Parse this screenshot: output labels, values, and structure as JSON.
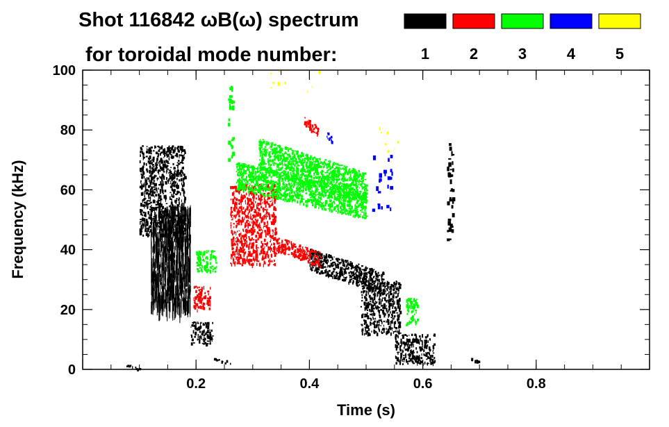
{
  "chart_data": {
    "type": "heatmap",
    "title_line1": "Shot 116842 ωB(ω) spectrum",
    "title_line2": "for toroidal mode number:",
    "xlabel": "Time (s)",
    "ylabel": "Frequency (kHz)",
    "xlim": [
      0.0,
      1.0
    ],
    "ylim": [
      0,
      100
    ],
    "x_ticks": [
      0.2,
      0.4,
      0.6,
      0.8
    ],
    "x_tick_labels": [
      "0.2",
      "0.4",
      "0.6",
      "0.8"
    ],
    "y_ticks": [
      0,
      20,
      40,
      60,
      80,
      100
    ],
    "y_tick_labels": [
      "0",
      "20",
      "40",
      "60",
      "80",
      "100"
    ],
    "legend": [
      {
        "label": "1",
        "color": "#000000"
      },
      {
        "label": "2",
        "color": "#ff0000"
      },
      {
        "label": "3",
        "color": "#00ff00"
      },
      {
        "label": "4",
        "color": "#0000ff"
      },
      {
        "label": "5",
        "color": "#ffff00"
      }
    ],
    "series": [
      {
        "name": "n=1",
        "color": "#000000",
        "regions": [
          {
            "t": [
              0.1,
              0.18
            ],
            "f": [
              45,
              75
            ],
            "kind": "blob"
          },
          {
            "t": [
              0.12,
              0.19
            ],
            "f": [
              22,
              55
            ],
            "kind": "streaks"
          },
          {
            "t": [
              0.19,
              0.23
            ],
            "f": [
              8,
              16
            ],
            "kind": "blob"
          },
          {
            "t": [
              0.23,
              0.26
            ],
            "f": [
              2,
              4
            ],
            "kind": "band"
          },
          {
            "t": [
              0.4,
              0.53
            ],
            "f": [
              25,
              41
            ],
            "kind": "band"
          },
          {
            "t": [
              0.49,
              0.56
            ],
            "f": [
              12,
              30
            ],
            "kind": "blob"
          },
          {
            "t": [
              0.55,
              0.62
            ],
            "f": [
              2,
              12
            ],
            "kind": "blob"
          },
          {
            "t": [
              0.642,
              0.652
            ],
            "f": [
              43,
              76
            ],
            "kind": "streak"
          },
          {
            "t": [
              0.685,
              0.7
            ],
            "f": [
              2,
              4
            ],
            "kind": "band"
          },
          {
            "t": [
              0.075,
              0.1
            ],
            "f": [
              0,
              2
            ],
            "kind": "band"
          }
        ]
      },
      {
        "name": "n=2",
        "color": "#ff0000",
        "regions": [
          {
            "t": [
              0.26,
              0.34
            ],
            "f": [
              35,
              62
            ],
            "kind": "blob"
          },
          {
            "t": [
              0.34,
              0.42
            ],
            "f": [
              34,
              45
            ],
            "kind": "band"
          },
          {
            "t": [
              0.195,
              0.225
            ],
            "f": [
              20,
              28
            ],
            "kind": "blob"
          },
          {
            "t": [
              0.39,
              0.415
            ],
            "f": [
              78,
              85
            ],
            "kind": "band"
          }
        ]
      },
      {
        "name": "n=3",
        "color": "#00ff00",
        "regions": [
          {
            "t": [
              0.27,
              0.5
            ],
            "f": [
              50,
              70
            ],
            "kind": "band"
          },
          {
            "t": [
              0.31,
              0.5
            ],
            "f": [
              55,
              78
            ],
            "kind": "band"
          },
          {
            "t": [
              0.2,
              0.235
            ],
            "f": [
              33,
              40
            ],
            "kind": "blob"
          },
          {
            "t": [
              0.255,
              0.265
            ],
            "f": [
              70,
              95
            ],
            "kind": "streak"
          },
          {
            "t": [
              0.57,
              0.59
            ],
            "f": [
              15,
              24
            ],
            "kind": "blob"
          }
        ]
      },
      {
        "name": "n=4",
        "color": "#0000ff",
        "regions": [
          {
            "t": [
              0.51,
              0.545
            ],
            "f": [
              52,
              72
            ],
            "kind": "streak"
          },
          {
            "t": [
              0.43,
              0.44
            ],
            "f": [
              75,
              80
            ],
            "kind": "band"
          }
        ]
      },
      {
        "name": "n=5",
        "color": "#ffff00",
        "regions": [
          {
            "t": [
              0.33,
              0.42
            ],
            "f": [
              92,
              100
            ],
            "kind": "sparse"
          },
          {
            "t": [
              0.52,
              0.56
            ],
            "f": [
              70,
              82
            ],
            "kind": "sparse"
          }
        ]
      }
    ]
  }
}
